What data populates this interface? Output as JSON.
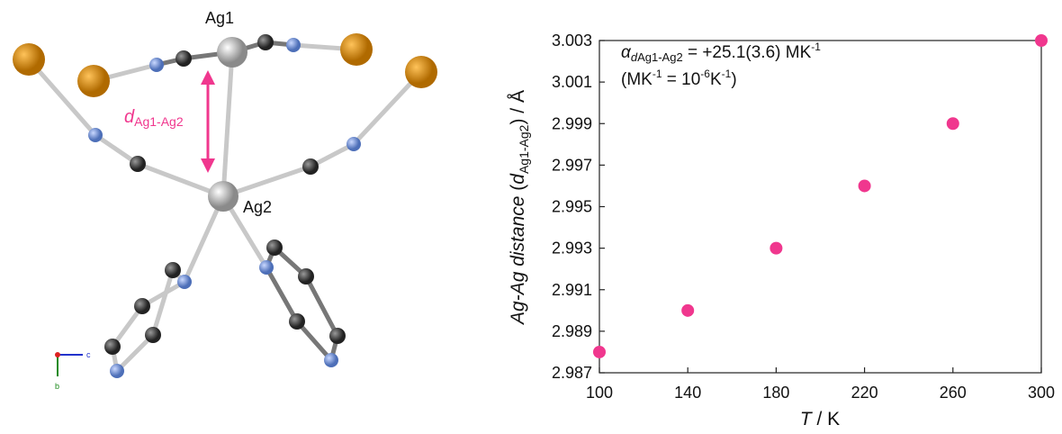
{
  "structure": {
    "atom_labels": [
      "Ag1",
      "Ag2"
    ],
    "distance_label": [
      "d",
      "Ag1-Ag2"
    ],
    "axis_labels": [
      "c",
      "b"
    ]
  },
  "chart_data": {
    "type": "scatter",
    "x_label": [
      "T",
      " / K"
    ],
    "y_label": [
      "Ag-Ag distance",
      " (",
      "d",
      "Ag1-Ag2",
      ") / Å"
    ],
    "annotation": {
      "line1": [
        "α",
        "d",
        "Ag1-Ag2",
        " = +25.1(3.6) MK",
        "-1"
      ],
      "line2": [
        "(MK",
        "-1",
        " = 10",
        "-6",
        "K",
        "-1",
        ")"
      ]
    },
    "x": [
      100,
      140,
      180,
      220,
      260,
      300
    ],
    "values": [
      2.988,
      2.99,
      2.993,
      2.996,
      2.999,
      3.003
    ],
    "color": "#f0378e",
    "xlim": [
      100,
      300
    ],
    "xticks": [
      100,
      140,
      180,
      220,
      260,
      300
    ],
    "ylim": [
      2.987,
      3.003
    ],
    "yticks": [
      2.987,
      2.989,
      2.991,
      2.993,
      2.995,
      2.997,
      2.999,
      3.001,
      3.003
    ],
    "grid": false
  }
}
